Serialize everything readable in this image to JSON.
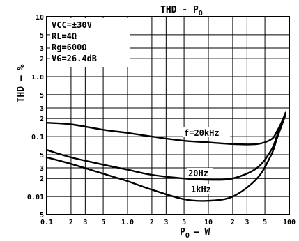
{
  "chart_data": {
    "type": "line",
    "title": "THD - P",
    "title_subscript": "O",
    "xlabel": "P",
    "xlabel_subscript": "O",
    "xlabel_unit": "— W",
    "ylabel": "THD – %",
    "x_scale": "log",
    "y_scale": "log",
    "xlim": [
      0.1,
      100
    ],
    "ylim": [
      0.005,
      10
    ],
    "grid": true,
    "x_tick_labels": [
      {
        "v": 0.1,
        "t": "0.1"
      },
      {
        "v": 0.2,
        "t": "2"
      },
      {
        "v": 0.3,
        "t": "3"
      },
      {
        "v": 0.5,
        "t": "5"
      },
      {
        "v": 1,
        "t": "1.0"
      },
      {
        "v": 2,
        "t": "2"
      },
      {
        "v": 3,
        "t": "3"
      },
      {
        "v": 5,
        "t": "5"
      },
      {
        "v": 10,
        "t": "10"
      },
      {
        "v": 20,
        "t": "2"
      },
      {
        "v": 30,
        "t": "3"
      },
      {
        "v": 50,
        "t": "5"
      },
      {
        "v": 100,
        "t": "100"
      }
    ],
    "y_tick_labels": [
      {
        "v": 10,
        "t": "10"
      },
      {
        "v": 5,
        "t": "5"
      },
      {
        "v": 3,
        "t": "3"
      },
      {
        "v": 2,
        "t": "2"
      },
      {
        "v": 1,
        "t": "1.0"
      },
      {
        "v": 0.5,
        "t": "5"
      },
      {
        "v": 0.3,
        "t": "3"
      },
      {
        "v": 0.2,
        "t": "2"
      },
      {
        "v": 0.1,
        "t": "0.1"
      },
      {
        "v": 0.05,
        "t": "5"
      },
      {
        "v": 0.03,
        "t": "3"
      },
      {
        "v": 0.02,
        "t": "2"
      },
      {
        "v": 0.01,
        "t": "0.01"
      },
      {
        "v": 0.005,
        "t": "5"
      }
    ],
    "conditions": [
      "VCC=±30V",
      "RL=4Ω",
      "Rg=600Ω",
      "VG=26.4dB"
    ],
    "series": [
      {
        "name": "f=20kHz",
        "x": [
          0.1,
          0.2,
          0.5,
          1,
          2,
          5,
          10,
          20,
          40,
          60,
          70,
          80,
          90
        ],
        "y": [
          0.17,
          0.16,
          0.13,
          0.115,
          0.1,
          0.085,
          0.08,
          0.075,
          0.075,
          0.09,
          0.12,
          0.17,
          0.25
        ]
      },
      {
        "name": "20Hz",
        "x": [
          0.1,
          0.2,
          0.5,
          1,
          2,
          5,
          10,
          20,
          40,
          60,
          70,
          80,
          90
        ],
        "y": [
          0.06,
          0.045,
          0.034,
          0.028,
          0.023,
          0.02,
          0.019,
          0.02,
          0.03,
          0.06,
          0.1,
          0.16,
          0.24
        ]
      },
      {
        "name": "1kHz",
        "x": [
          0.1,
          0.2,
          0.5,
          1,
          2,
          5,
          10,
          20,
          40,
          60,
          70,
          80,
          90
        ],
        "y": [
          0.045,
          0.035,
          0.024,
          0.018,
          0.013,
          0.009,
          0.0085,
          0.01,
          0.02,
          0.05,
          0.09,
          0.15,
          0.23
        ]
      }
    ]
  }
}
